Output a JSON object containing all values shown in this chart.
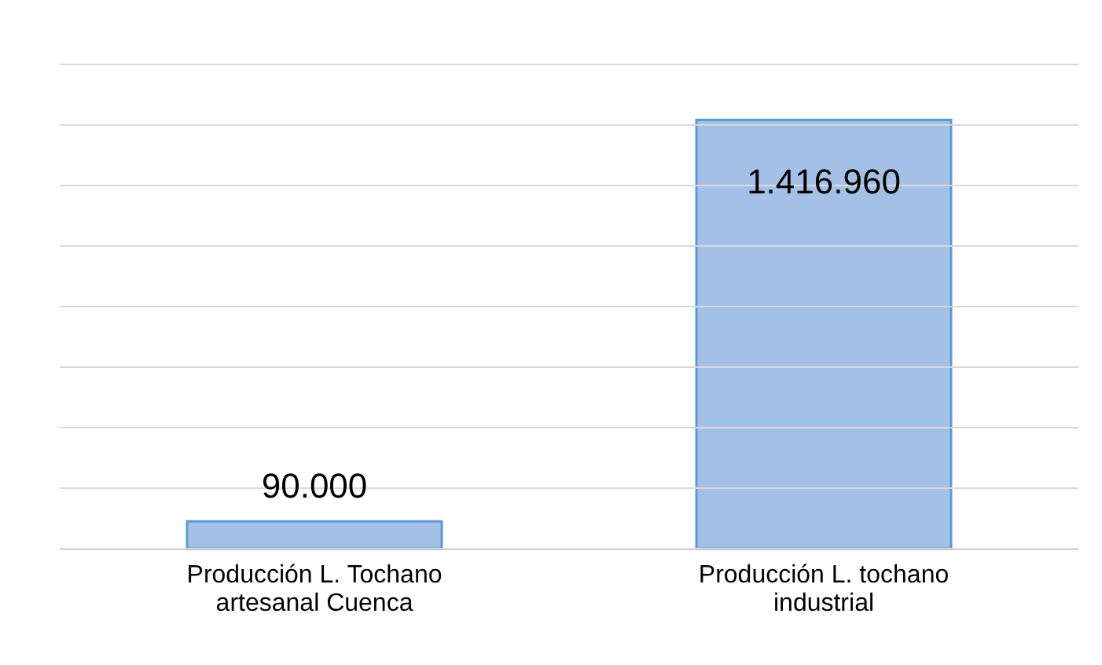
{
  "chart_data": {
    "type": "bar",
    "categories": [
      "Producción L. Tochano artesanal Cuenca",
      "Producción L. tochano industrial"
    ],
    "values": [
      90000,
      1416960
    ],
    "value_labels": [
      "90.000",
      "1.416.960"
    ],
    "color": "#a3c1e7",
    "ylim": [
      0,
      1600000
    ],
    "yticks": [
      {
        "value": 0,
        "label": null
      },
      {
        "value": 200000,
        "label": null
      },
      {
        "value": 400000,
        "label": null
      },
      {
        "value": 600000,
        "label": null
      },
      {
        "value": 800000,
        "label": null
      },
      {
        "value": 1000000,
        "label": null
      },
      {
        "value": 1200000,
        "label": null
      },
      {
        "value": 1400000,
        "label": null
      },
      {
        "value": 1600000,
        "label": null
      }
    ],
    "grid": "y",
    "tick_labels": "x"
  }
}
